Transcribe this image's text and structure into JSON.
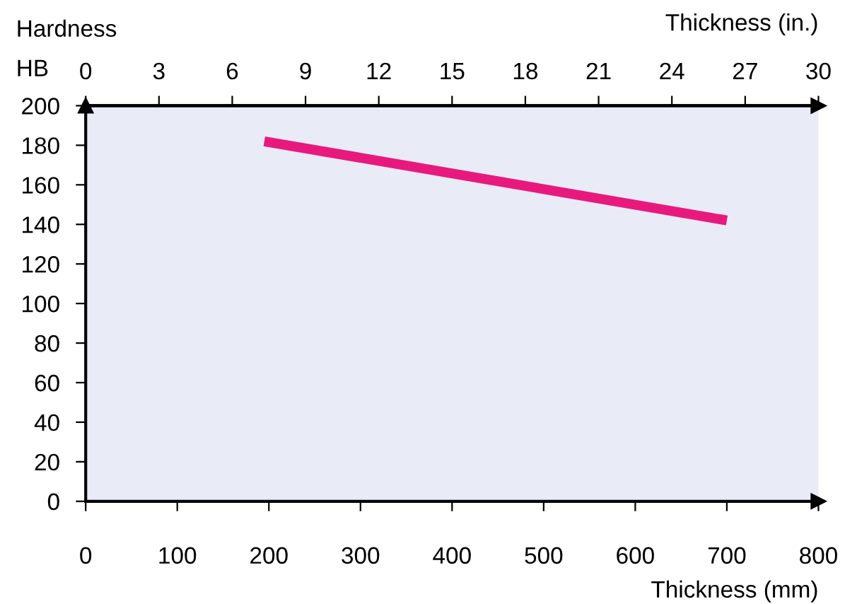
{
  "chart_data": {
    "type": "line",
    "ylabel": "Hardness",
    "xlabel": "Thickness (mm)",
    "x2label": "Thickness (in.)",
    "annotations": [
      "HB"
    ],
    "series": [
      {
        "color": "#e8197d",
        "x": [
          195,
          700
        ],
        "values": [
          182,
          142
        ]
      }
    ],
    "xlim": [
      0,
      800
    ],
    "xticks": [
      0,
      100,
      200,
      300,
      400,
      500,
      600,
      700,
      800
    ],
    "x2lim": [
      0,
      30
    ],
    "x2ticks": [
      0,
      3,
      6,
      9,
      12,
      15,
      18,
      21,
      24,
      27,
      30
    ],
    "ylim": [
      0,
      200
    ],
    "yticks": [
      0,
      20,
      40,
      60,
      80,
      100,
      120,
      140,
      160,
      180,
      200
    ],
    "grid": false,
    "legend": false,
    "marker": "none",
    "line_style": "solid"
  }
}
